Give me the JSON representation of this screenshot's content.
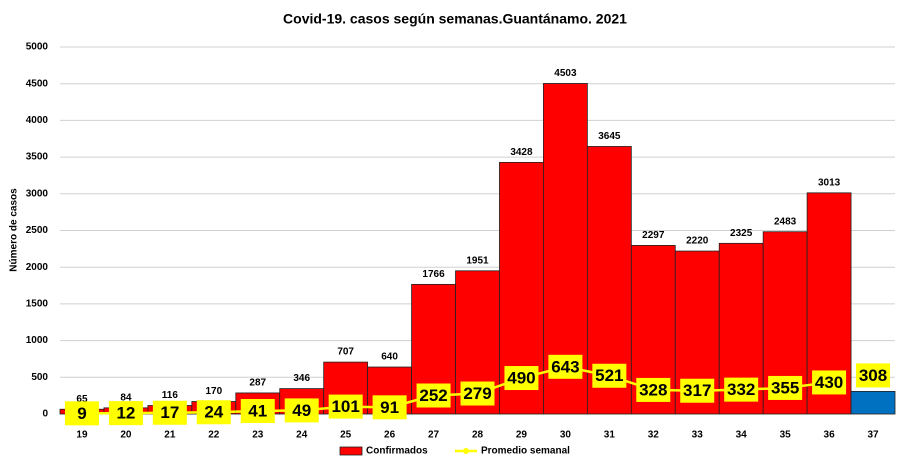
{
  "chart_data": {
    "type": "bar_line",
    "title": "Covid-19. casos según semanas.Guantánamo. 2021",
    "y_label": "Número de casos",
    "categories": [
      "19",
      "20",
      "21",
      "22",
      "23",
      "24",
      "25",
      "26",
      "27",
      "28",
      "29",
      "30",
      "31",
      "32",
      "33",
      "34",
      "35",
      "36",
      "37"
    ],
    "series": [
      {
        "name": "Confirmados",
        "type": "bar",
        "color": "#ff0000",
        "point_colors": [
          "#ff0000",
          "#ff0000",
          "#ff0000",
          "#ff0000",
          "#ff0000",
          "#ff0000",
          "#ff0000",
          "#ff0000",
          "#ff0000",
          "#ff0000",
          "#ff0000",
          "#ff0000",
          "#ff0000",
          "#ff0000",
          "#ff0000",
          "#ff0000",
          "#ff0000",
          "#ff0000",
          "#0070c0"
        ],
        "values": [
          65,
          84,
          116,
          170,
          287,
          346,
          707,
          640,
          1766,
          1951,
          3428,
          4503,
          3645,
          2297,
          2220,
          2325,
          2483,
          3013,
          308
        ]
      },
      {
        "name": "Promedio semanal",
        "type": "line",
        "color": "#ffff00",
        "values": [
          9,
          12,
          17,
          24,
          41,
          49,
          101,
          91,
          252,
          279,
          490,
          643,
          521,
          328,
          317,
          332,
          355,
          430,
          null
        ]
      }
    ],
    "ylim": [
      0,
      5000
    ],
    "yticks": [
      0,
      500,
      1000,
      1500,
      2000,
      2500,
      3000,
      3500,
      4000,
      4500,
      5000
    ],
    "grid": true,
    "legend": "bottom"
  }
}
